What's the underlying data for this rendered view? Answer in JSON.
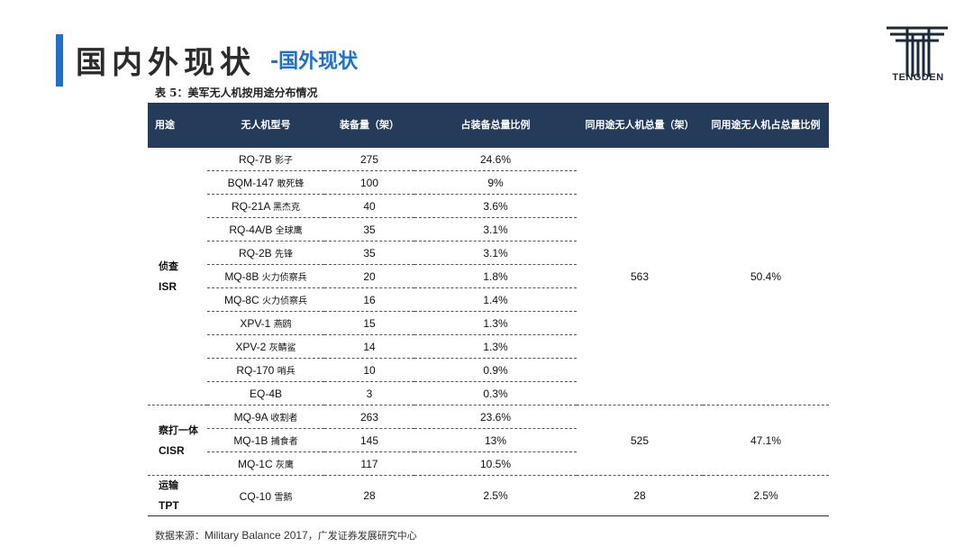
{
  "header": {
    "title_main": "国内外现状",
    "title_sub": "-国外现状",
    "logo_text": "TENGDEN",
    "accent_color": "#1f6fd1"
  },
  "table": {
    "caption": "表 5：美军无人机按用途分布情况",
    "columns": [
      "用途",
      "无人机型号",
      "装备量（架）",
      "占装备总量比例",
      "同用途无人机总量（架）",
      "同用途无人机占总量比例"
    ],
    "header_color": "#243b5a",
    "groups": [
      {
        "category_cn": "侦查",
        "category_en": "ISR",
        "total": "563",
        "total_pct": "50.4%",
        "rows": [
          {
            "model": "RQ-7B",
            "name_cn": "影子",
            "qty": "275",
            "pct": "24.6%"
          },
          {
            "model": "BQM-147",
            "name_cn": "敢死蜂",
            "qty": "100",
            "pct": "9%"
          },
          {
            "model": "RQ-21A",
            "name_cn": "黑杰克",
            "qty": "40",
            "pct": "3.6%"
          },
          {
            "model": "RQ-4A/B",
            "name_cn": "全球鹰",
            "qty": "35",
            "pct": "3.1%"
          },
          {
            "model": "RQ-2B",
            "name_cn": "先锋",
            "qty": "35",
            "pct": "3.1%"
          },
          {
            "model": "MQ-8B",
            "name_cn": "火力侦察兵",
            "qty": "20",
            "pct": "1.8%"
          },
          {
            "model": "MQ-8C",
            "name_cn": "火力侦察兵",
            "qty": "16",
            "pct": "1.4%"
          },
          {
            "model": "XPV-1",
            "name_cn": "燕鸥",
            "qty": "15",
            "pct": "1.3%"
          },
          {
            "model": "XPV-2",
            "name_cn": "灰鲭鲨",
            "qty": "14",
            "pct": "1.3%"
          },
          {
            "model": "RQ-170",
            "name_cn": "哨兵",
            "qty": "10",
            "pct": "0.9%"
          },
          {
            "model": "EQ-4B",
            "name_cn": "",
            "qty": "3",
            "pct": "0.3%"
          }
        ]
      },
      {
        "category_cn": "察打一体",
        "category_en": "CISR",
        "total": "525",
        "total_pct": "47.1%",
        "rows": [
          {
            "model": "MQ-9A",
            "name_cn": "收割者",
            "qty": "263",
            "pct": "23.6%"
          },
          {
            "model": "MQ-1B",
            "name_cn": "捕食者",
            "qty": "145",
            "pct": "13%"
          },
          {
            "model": "MQ-1C",
            "name_cn": "灰鹰",
            "qty": "117",
            "pct": "10.5%"
          }
        ]
      },
      {
        "category_cn": "运输",
        "category_en": "TPT",
        "total": "28",
        "total_pct": "2.5%",
        "rows": [
          {
            "model": "CQ-10",
            "name_cn": "雪鹅",
            "qty": "28",
            "pct": "2.5%"
          }
        ]
      }
    ]
  },
  "source": {
    "label": "数据来源：",
    "text": "Military Balance 2017",
    "suffix": "，广发证券发展研究中心"
  }
}
